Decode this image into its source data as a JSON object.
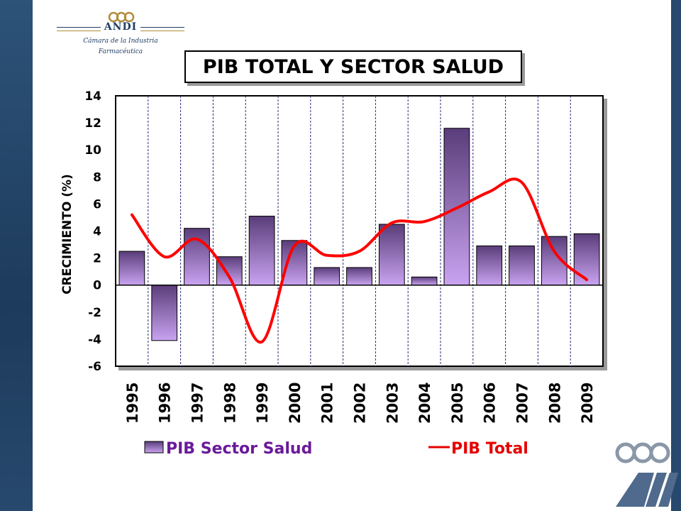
{
  "logo": {
    "brand": "ANDI",
    "subtitle_line1": "Cámara de la Industria",
    "subtitle_line2": "Farmacéutica"
  },
  "chart_data": {
    "type": "bar",
    "title": "PIB TOTAL Y SECTOR SALUD",
    "xlabel": "",
    "ylabel": "CRECIMIENTO  (%)",
    "ylim": [
      -6,
      14
    ],
    "yticks": [
      14,
      12,
      10,
      8,
      6,
      4,
      2,
      0,
      -2,
      -4,
      -6
    ],
    "grid": "vertical dashed",
    "legend_position": "bottom",
    "categories": [
      "1995",
      "1996",
      "1997",
      "1998",
      "1999",
      "2000",
      "2001",
      "2002",
      "2003",
      "2004",
      "2005",
      "2006",
      "2007",
      "2008",
      "2009"
    ],
    "series": [
      {
        "name": "PIB Sector Salud",
        "type": "bar",
        "color": "#6a4a8c",
        "color_light": "#c9a3f0",
        "values": [
          2.5,
          -4.1,
          4.2,
          2.1,
          5.1,
          3.3,
          1.3,
          1.3,
          4.5,
          0.6,
          11.6,
          2.9,
          2.9,
          3.6,
          3.8
        ]
      },
      {
        "name": "PIB Total",
        "type": "line",
        "color": "#ff0000",
        "values": [
          5.2,
          2.1,
          3.4,
          0.6,
          -4.2,
          2.9,
          2.2,
          2.5,
          4.6,
          4.7,
          5.7,
          6.9,
          7.6,
          2.5,
          0.4
        ]
      }
    ]
  }
}
